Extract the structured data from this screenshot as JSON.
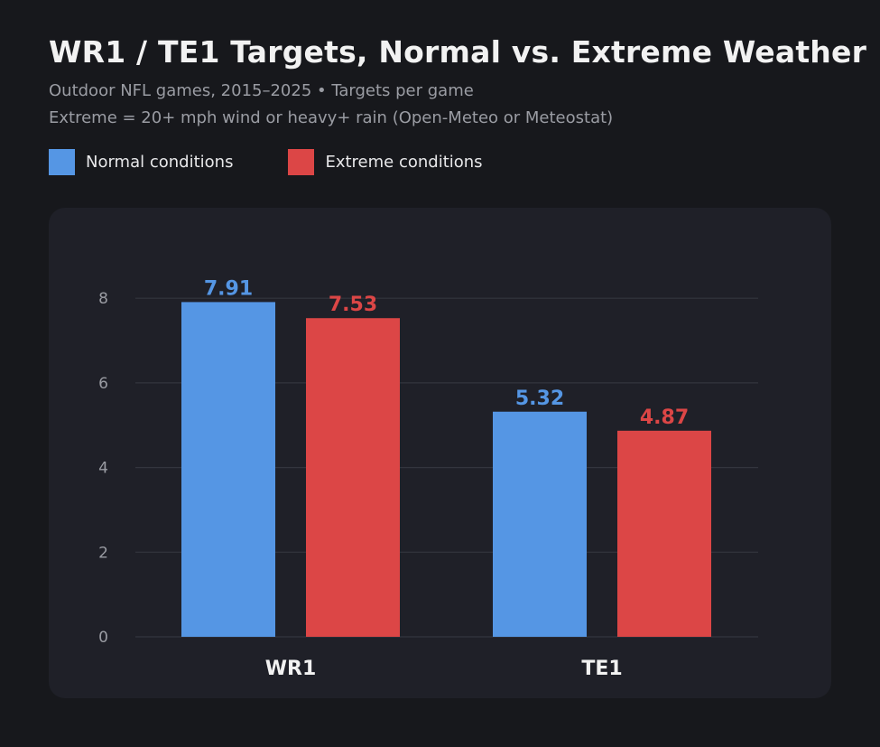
{
  "header": {
    "title": "WR1 / TE1 Targets, Normal vs. Extreme Weather",
    "subtitle_line1": "Outdoor NFL games, 2015–2025  •  Targets per game",
    "subtitle_line2": "Extreme = 20+ mph wind or heavy+ rain (Open-Meteo or Meteostat)"
  },
  "legend": {
    "normal_label": "Normal conditions",
    "extreme_label": "Extreme conditions"
  },
  "colors": {
    "normal": "#5596e4",
    "extreme": "#dc4646",
    "background": "#17181c",
    "panel": "#1f2028",
    "grid": "#33353e",
    "tick_text": "#9a9ca3",
    "category_text": "#f2f2f2"
  },
  "chart_data": {
    "type": "bar",
    "categories": [
      "WR1",
      "TE1"
    ],
    "series": [
      {
        "name": "Normal conditions",
        "values": [
          7.91,
          5.32
        ]
      },
      {
        "name": "Extreme conditions",
        "values": [
          7.53,
          4.87
        ]
      }
    ],
    "yticks": [
      0,
      2,
      4,
      6,
      8
    ],
    "ylim": [
      0,
      9.2
    ],
    "grid": true,
    "legend_position": "top-left",
    "data_labels": [
      "7.91",
      "7.53",
      "5.32",
      "4.87"
    ]
  }
}
